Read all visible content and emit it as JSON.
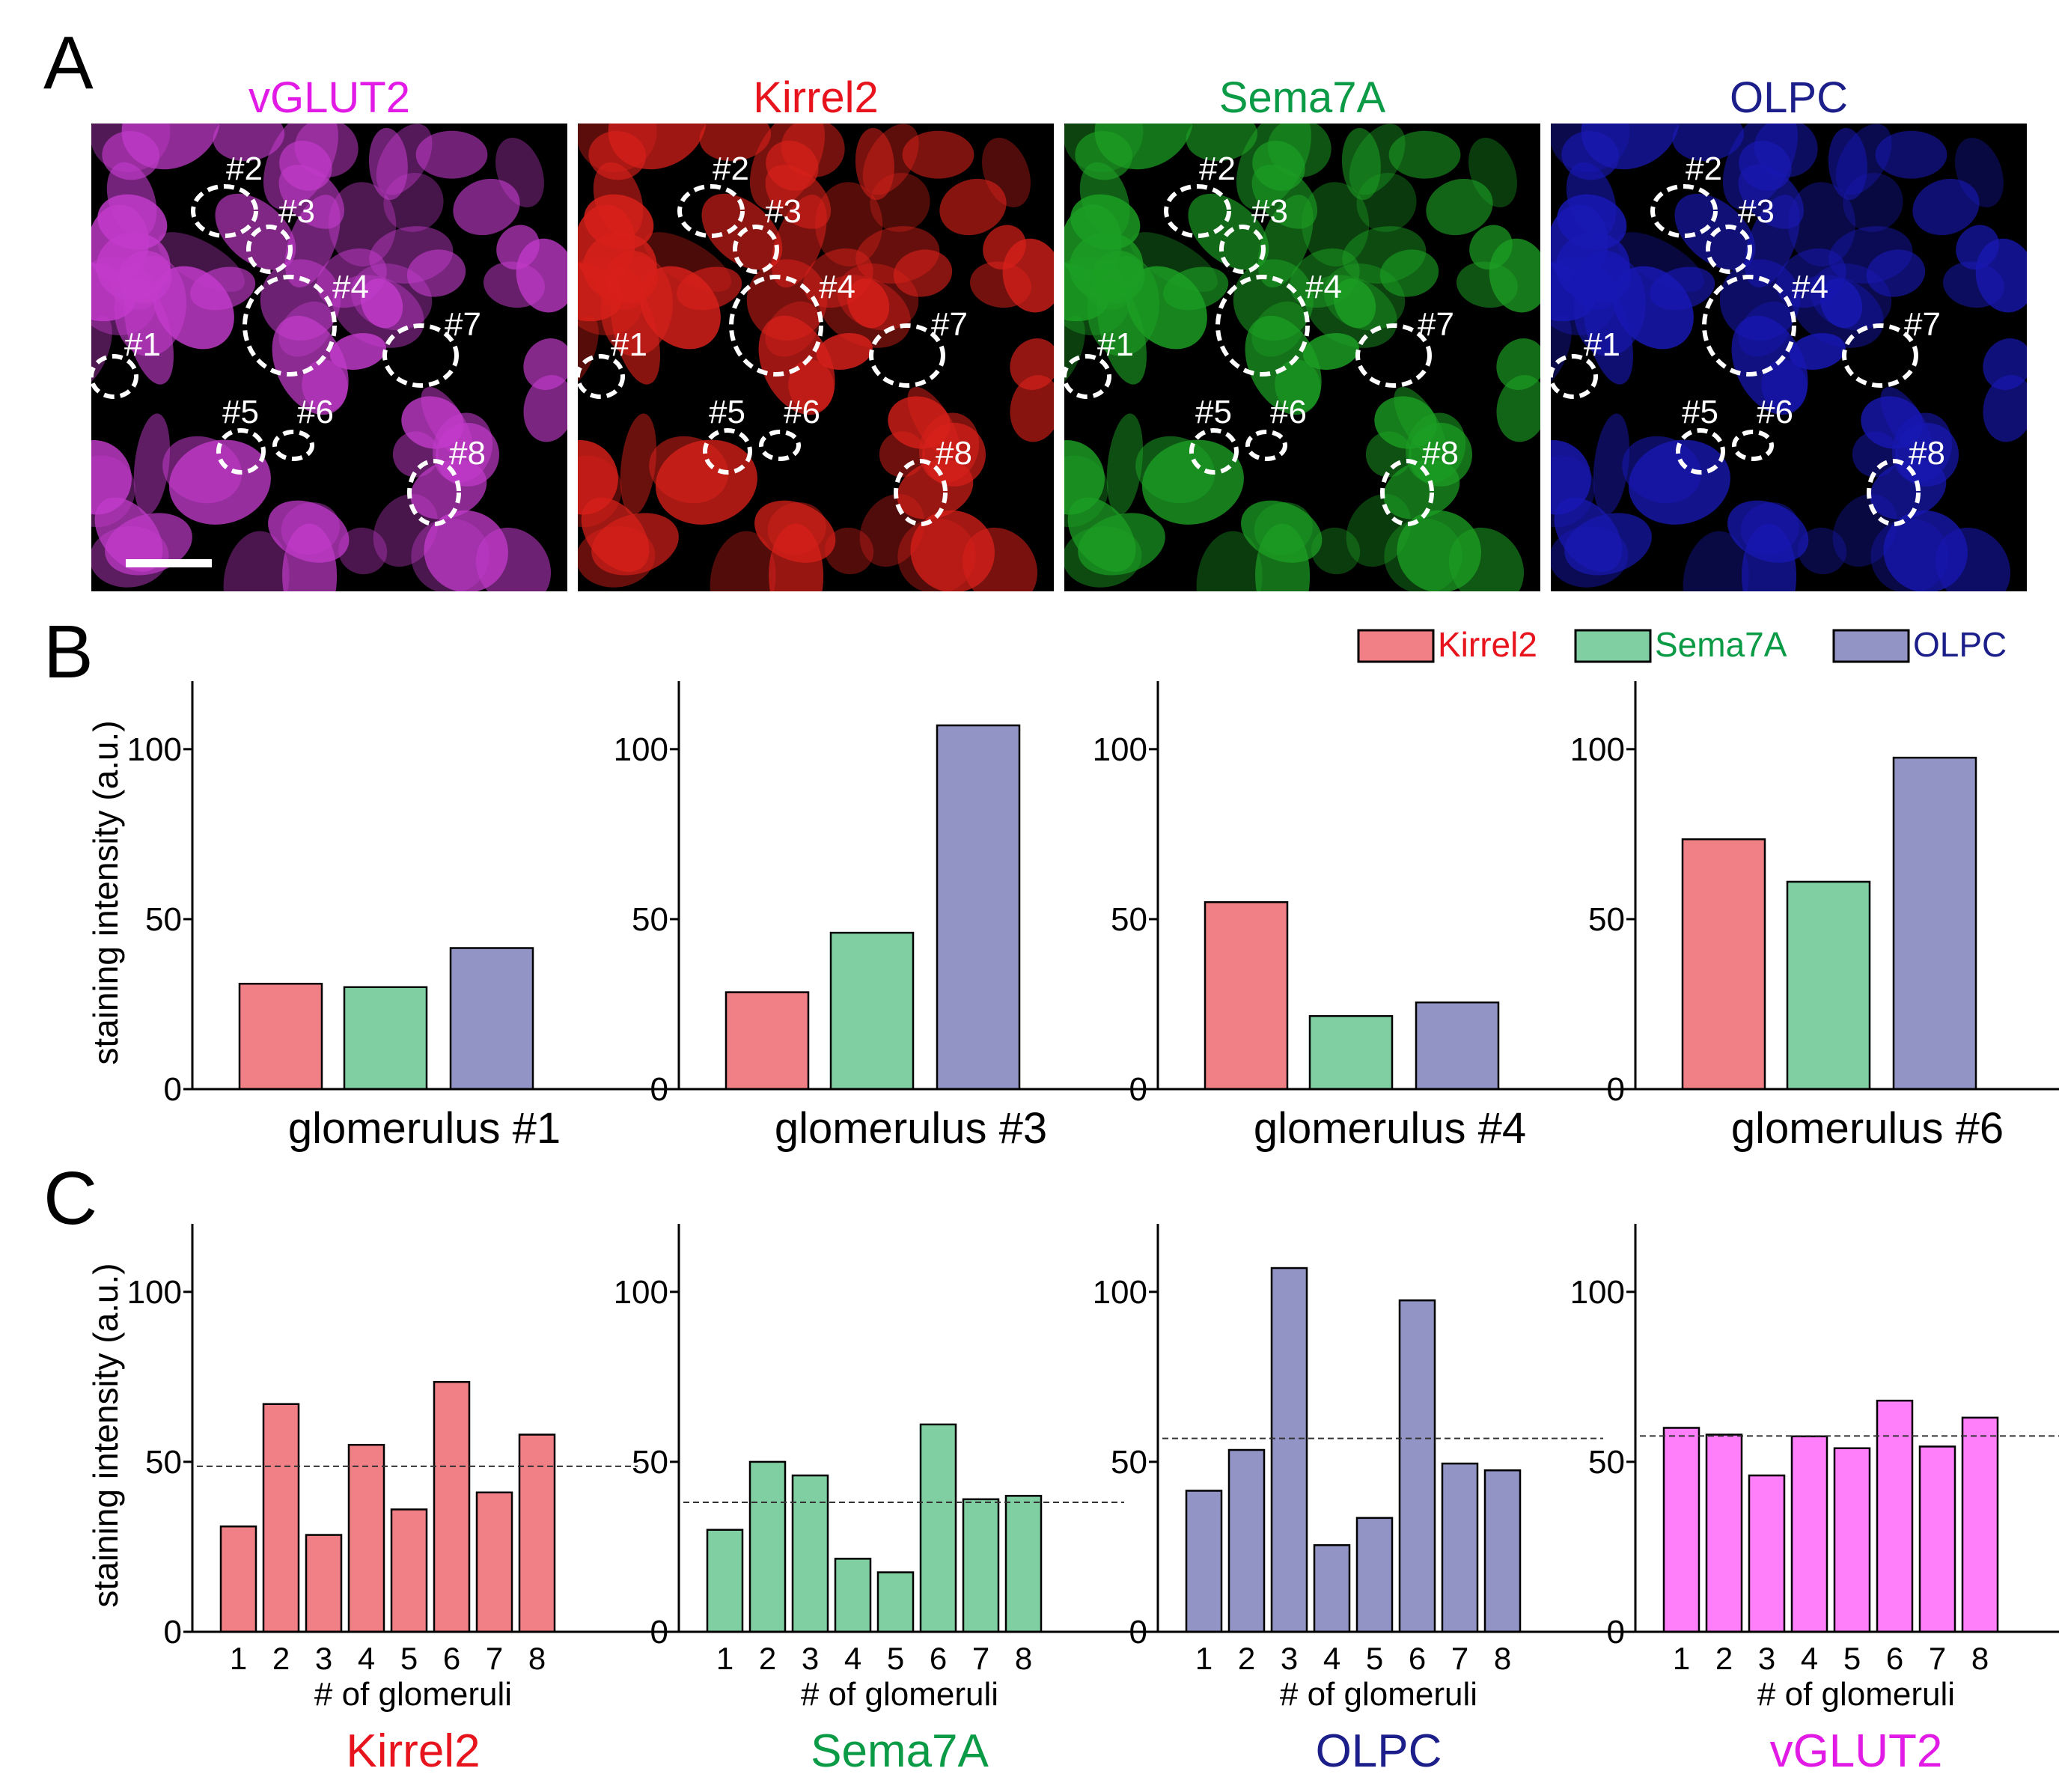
{
  "panel_letters": {
    "a": "A",
    "b": "B",
    "c": "C"
  },
  "colors": {
    "kirrel2": "#e8141d",
    "sema7a": "#0b9a46",
    "olpc": "#1c1f8a",
    "vglut2": "#e21ae6",
    "kirrel2_fill": "#f08085",
    "sema7a_fill": "#80cfa3",
    "olpc_fill": "#9294c6",
    "vglut2_fill": "#ff7ef9"
  },
  "panel_a": {
    "images": [
      {
        "title": "vGLUT2",
        "color": "#e21ae6",
        "tint": "#c23bcb"
      },
      {
        "title": "Kirrel2",
        "color": "#e8141d",
        "tint": "#d8201a"
      },
      {
        "title": "Sema7A",
        "color": "#0b9a46",
        "tint": "#1c9f24"
      },
      {
        "title": "OLPC",
        "color": "#1c1f8a",
        "tint": "#1818b4"
      }
    ],
    "glomerulus_labels": [
      "#1",
      "#2",
      "#3",
      "#4",
      "#5",
      "#6",
      "#7",
      "#8"
    ]
  },
  "legend": [
    {
      "label": "Kirrel2",
      "color": "#e8141d",
      "fill": "#f08085"
    },
    {
      "label": "Sema7A",
      "color": "#0b9a46",
      "fill": "#80cfa3"
    },
    {
      "label": "OLPC",
      "color": "#1c1f8a",
      "fill": "#9294c6"
    }
  ],
  "chart_data": [
    {
      "type": "bar",
      "panel": "B",
      "xlabel": "glomerulus #1",
      "ylabel": "staining intensity (a.u.)",
      "ylim": [
        0,
        120
      ],
      "yticks": [
        0,
        50,
        100
      ],
      "categories": [
        "Kirrel2",
        "Sema7A",
        "OLPC"
      ],
      "values": [
        31,
        30,
        41.5
      ]
    },
    {
      "type": "bar",
      "panel": "B",
      "xlabel": "glomerulus #3",
      "ylabel": "",
      "ylim": [
        0,
        120
      ],
      "yticks": [
        0,
        50,
        100
      ],
      "categories": [
        "Kirrel2",
        "Sema7A",
        "OLPC"
      ],
      "values": [
        28.5,
        46,
        107
      ]
    },
    {
      "type": "bar",
      "panel": "B",
      "xlabel": "glomerulus #4",
      "ylabel": "",
      "ylim": [
        0,
        120
      ],
      "yticks": [
        0,
        50,
        100
      ],
      "categories": [
        "Kirrel2",
        "Sema7A",
        "OLPC"
      ],
      "values": [
        55,
        21.5,
        25.5
      ]
    },
    {
      "type": "bar",
      "panel": "B",
      "xlabel": "glomerulus #6",
      "ylabel": "",
      "ylim": [
        0,
        120
      ],
      "yticks": [
        0,
        50,
        100
      ],
      "categories": [
        "Kirrel2",
        "Sema7A",
        "OLPC"
      ],
      "values": [
        73.5,
        61,
        97.5
      ]
    },
    {
      "type": "bar",
      "panel": "C",
      "title": "Kirrel2",
      "xlabel": "# of glomeruli",
      "ylabel": "staining intensity (a.u.)",
      "ylim": [
        0,
        120
      ],
      "yticks": [
        0,
        50,
        100
      ],
      "categories": [
        "1",
        "2",
        "3",
        "4",
        "5",
        "6",
        "7",
        "8"
      ],
      "values": [
        31,
        67,
        28.5,
        55,
        36,
        73.5,
        41,
        58
      ],
      "mean_line": 48.7
    },
    {
      "type": "bar",
      "panel": "C",
      "title": "Sema7A",
      "xlabel": "# of glomeruli",
      "ylabel": "",
      "ylim": [
        0,
        120
      ],
      "yticks": [
        0,
        50,
        100
      ],
      "categories": [
        "1",
        "2",
        "3",
        "4",
        "5",
        "6",
        "7",
        "8"
      ],
      "values": [
        30,
        50,
        46,
        21.5,
        17.5,
        61,
        39,
        40
      ],
      "mean_line": 38.1
    },
    {
      "type": "bar",
      "panel": "C",
      "title": "OLPC",
      "xlabel": "# of glomeruli",
      "ylabel": "",
      "ylim": [
        0,
        120
      ],
      "yticks": [
        0,
        50,
        100
      ],
      "categories": [
        "1",
        "2",
        "3",
        "4",
        "5",
        "6",
        "7",
        "8"
      ],
      "values": [
        41.5,
        53.5,
        107,
        25.5,
        33.5,
        97.5,
        49.5,
        47.5
      ],
      "mean_line": 56.9
    },
    {
      "type": "bar",
      "panel": "C",
      "title": "vGLUT2",
      "xlabel": "# of glomeruli",
      "ylabel": "",
      "ylim": [
        0,
        120
      ],
      "yticks": [
        0,
        50,
        100
      ],
      "categories": [
        "1",
        "2",
        "3",
        "4",
        "5",
        "6",
        "7",
        "8"
      ],
      "values": [
        60,
        58,
        46,
        57.5,
        54,
        68,
        54.5,
        63
      ],
      "mean_line": 57.6
    }
  ]
}
